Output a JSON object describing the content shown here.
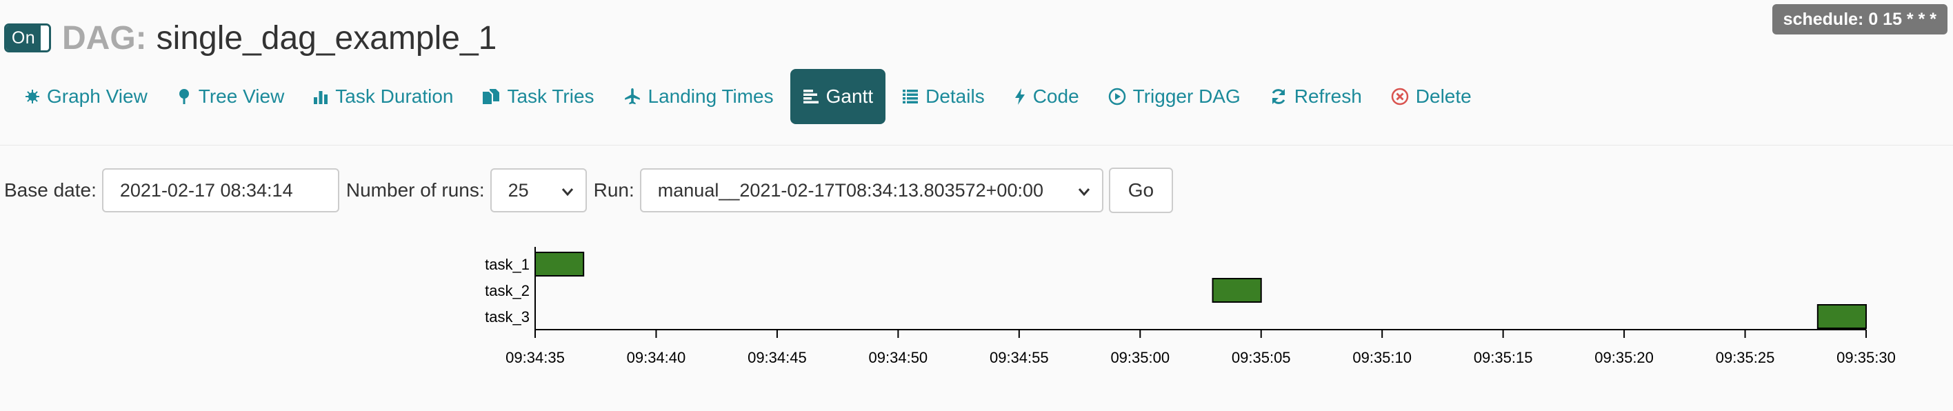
{
  "header": {
    "toggle_label": "On",
    "dag_label": "DAG:",
    "dag_id": "single_dag_example_1",
    "schedule": "schedule: 0 15 * * *"
  },
  "nav": {
    "items": [
      {
        "label": "Graph View",
        "icon": "graph-icon"
      },
      {
        "label": "Tree View",
        "icon": "tree-icon"
      },
      {
        "label": "Task Duration",
        "icon": "bar-chart-icon"
      },
      {
        "label": "Task Tries",
        "icon": "duplicate-icon"
      },
      {
        "label": "Landing Times",
        "icon": "plane-icon"
      },
      {
        "label": "Gantt",
        "icon": "gantt-icon",
        "active": true
      },
      {
        "label": "Details",
        "icon": "list-icon"
      },
      {
        "label": "Code",
        "icon": "flash-icon"
      },
      {
        "label": "Trigger DAG",
        "icon": "play-circle-icon"
      },
      {
        "label": "Refresh",
        "icon": "refresh-icon"
      },
      {
        "label": "Delete",
        "icon": "remove-circle-icon"
      }
    ],
    "active_color": "#1f5d63",
    "link_color": "#1b8a9a",
    "delete_color": "#d9534f"
  },
  "form": {
    "base_date_label": "Base date:",
    "base_date_value": "2021-02-17 08:34:14",
    "num_runs_label": "Number of runs:",
    "num_runs_value": "25",
    "run_label": "Run:",
    "run_value": "manual__2021-02-17T08:34:13.803572+00:00",
    "go_label": "Go"
  },
  "chart_data": {
    "type": "gantt",
    "tasks": [
      {
        "name": "task_1",
        "start": "09:34:35",
        "end": "09:34:37"
      },
      {
        "name": "task_2",
        "start": "09:35:03",
        "end": "09:35:05"
      },
      {
        "name": "task_3",
        "start": "09:35:28",
        "end": "09:35:30"
      }
    ],
    "x_ticks": [
      "09:34:35",
      "09:34:40",
      "09:34:45",
      "09:34:50",
      "09:34:55",
      "09:35:00",
      "09:35:05",
      "09:35:10",
      "09:35:15",
      "09:35:20",
      "09:35:25",
      "09:35:30"
    ],
    "xlim": [
      "09:34:35",
      "09:35:30"
    ],
    "bar_color": "#3a7f24"
  }
}
